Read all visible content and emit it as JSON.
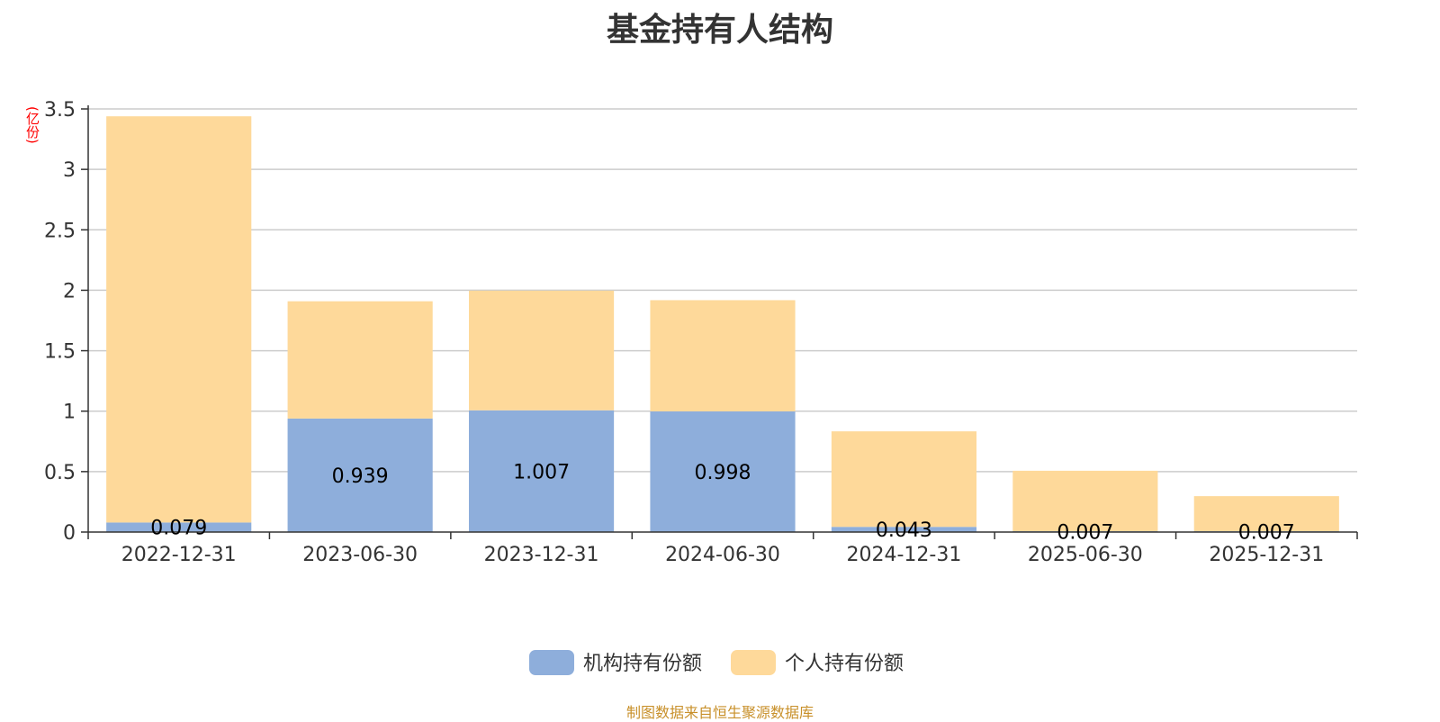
{
  "chart_data": {
    "type": "bar",
    "stacked": true,
    "title": "基金持有人结构",
    "unit_label": "(亿份)",
    "categories": [
      "2022-12-31",
      "2023-06-30",
      "2023-12-31",
      "2024-06-30",
      "2024-12-31",
      "2025-06-30",
      "2025-12-31"
    ],
    "series": [
      {
        "name": "机构持有份额",
        "color": "#8eaedb",
        "values": [
          0.079,
          0.939,
          1.007,
          0.998,
          0.043,
          0.007,
          0.007
        ],
        "labels": [
          "0.079",
          "0.939",
          "1.007",
          "0.998",
          "0.043",
          "0.007",
          "0.007"
        ]
      },
      {
        "name": "个人持有份额",
        "color": "#fed99a",
        "values": [
          3.36,
          0.97,
          0.99,
          0.92,
          0.79,
          0.5,
          0.29
        ]
      }
    ],
    "ylim": [
      0,
      3.5
    ],
    "yticks": [
      "0",
      "0.5",
      "1",
      "1.5",
      "2",
      "2.5",
      "3",
      "3.5"
    ],
    "grid": true,
    "legend_position": "bottom-center"
  },
  "source_note": "制图数据来自恒生聚源数据库"
}
